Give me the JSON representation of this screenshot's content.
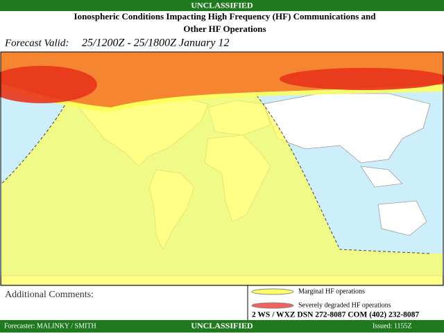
{
  "header": {
    "classification": "UNCLASSIFIED",
    "title_lines": [
      "Ionospheric Conditions Impacting High Frequency (HF) Communications and",
      "Other HF Operations"
    ],
    "forecast_label": "Forecast Valid:",
    "forecast_period": "25/1200Z - 25/1800Z January 12"
  },
  "comments_label": "Additional Comments:",
  "legend": [
    "Marginal HF operations",
    "Severely degraded HF operations"
  ],
  "contact": "2 WS / WXZ DSN 272-8087 COM (402) 232-8087",
  "footer": {
    "forecaster": "Forecaster:  MALINKY / SMITH",
    "classification": "UNCLASSIFIED",
    "issued": "Issued:  1155Z"
  }
}
